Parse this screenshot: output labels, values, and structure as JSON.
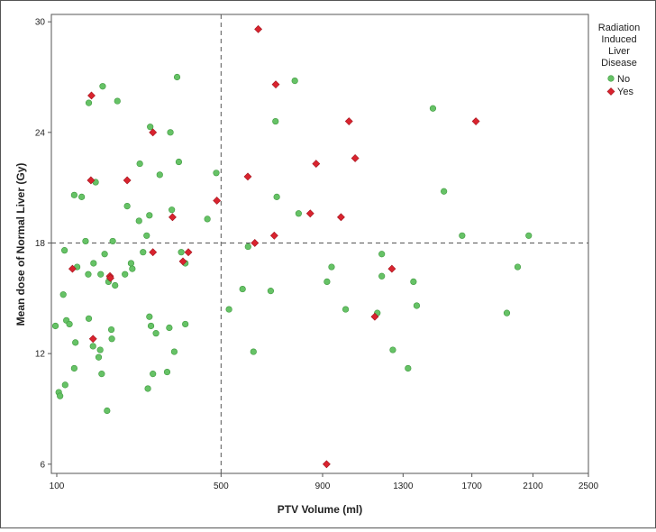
{
  "chart_data": {
    "type": "scatter",
    "title": "",
    "xlabel": "PTV Volume (ml)",
    "ylabel": "Mean dose of Normal Liver (Gy)",
    "x_scale": "sqrt",
    "xlim": [
      100,
      2500
    ],
    "ylim": [
      5.5,
      30.4
    ],
    "xticks": [
      100,
      500,
      900,
      1300,
      1700,
      2100,
      2500
    ],
    "yticks": [
      6,
      12,
      18,
      24,
      30
    ],
    "reference_lines": {
      "x": 500,
      "y": 18,
      "style": "dashed"
    },
    "grid": false,
    "legend": {
      "title": "Radiation Induced Liver Disease",
      "title_lines": [
        "Radiation",
        "Induced",
        "Liver",
        "Disease"
      ],
      "placement": "top-right"
    },
    "series": [
      {
        "name": "No",
        "color": "#66c266",
        "marker": "circle",
        "points": [
          [
            103,
            9.9
          ],
          [
            105,
            9.7
          ],
          [
            98,
            13.5
          ],
          [
            113,
            10.3
          ],
          [
            110,
            15.2
          ],
          [
            112,
            17.6
          ],
          [
            115,
            13.8
          ],
          [
            120,
            13.6
          ],
          [
            128,
            11.2
          ],
          [
            130,
            12.6
          ],
          [
            128,
            20.6
          ],
          [
            133,
            16.7
          ],
          [
            141,
            20.5
          ],
          [
            148,
            18.1
          ],
          [
            154,
            13.9
          ],
          [
            153,
            16.3
          ],
          [
            154,
            25.6
          ],
          [
            162,
            12.4
          ],
          [
            163,
            16.9
          ],
          [
            167,
            21.3
          ],
          [
            173,
            11.8
          ],
          [
            176,
            12.2
          ],
          [
            177,
            16.3
          ],
          [
            179,
            10.9
          ],
          [
            181,
            26.5
          ],
          [
            185,
            17.4
          ],
          [
            190,
            8.9
          ],
          [
            193,
            15.9
          ],
          [
            196,
            16.1
          ],
          [
            199,
            13.3
          ],
          [
            200,
            12.8
          ],
          [
            202,
            18.1
          ],
          [
            207,
            15.7
          ],
          [
            212,
            25.7
          ],
          [
            229,
            16.3
          ],
          [
            234,
            20.0
          ],
          [
            243,
            16.9
          ],
          [
            246,
            16.6
          ],
          [
            262,
            19.2
          ],
          [
            264,
            22.3
          ],
          [
            272,
            17.5
          ],
          [
            281,
            18.4
          ],
          [
            284,
            10.1
          ],
          [
            288,
            19.5
          ],
          [
            288,
            14.0
          ],
          [
            290,
            24.3
          ],
          [
            292,
            13.5
          ],
          [
            297,
            10.9
          ],
          [
            305,
            13.1
          ],
          [
            315,
            21.7
          ],
          [
            335,
            11.0
          ],
          [
            341,
            13.4
          ],
          [
            344,
            24.0
          ],
          [
            348,
            19.8
          ],
          [
            355,
            12.1
          ],
          [
            363,
            27.0
          ],
          [
            368,
            22.4
          ],
          [
            375,
            17.5
          ],
          [
            387,
            16.9
          ],
          [
            387,
            13.6
          ],
          [
            455,
            19.3
          ],
          [
            484,
            21.8
          ],
          [
            527,
            14.4
          ],
          [
            575,
            15.5
          ],
          [
            595,
            17.8
          ],
          [
            615,
            12.1
          ],
          [
            681,
            15.4
          ],
          [
            700,
            24.6
          ],
          [
            705,
            20.5
          ],
          [
            779,
            26.8
          ],
          [
            795,
            19.6
          ],
          [
            920,
            15.9
          ],
          [
            941,
            16.7
          ],
          [
            1007,
            14.4
          ],
          [
            1164,
            14.2
          ],
          [
            1187,
            16.2
          ],
          [
            1187,
            17.4
          ],
          [
            1245,
            12.2
          ],
          [
            1327,
            11.2
          ],
          [
            1357,
            15.9
          ],
          [
            1375,
            14.6
          ],
          [
            1467,
            25.3
          ],
          [
            1531,
            20.8
          ],
          [
            1640,
            18.4
          ],
          [
            1924,
            14.2
          ],
          [
            1996,
            16.7
          ],
          [
            2071,
            18.4
          ]
        ]
      },
      {
        "name": "Yes",
        "color": "#d9232e",
        "marker": "diamond",
        "points": [
          [
            125,
            16.6
          ],
          [
            159,
            26.0
          ],
          [
            158,
            21.4
          ],
          [
            162,
            12.8
          ],
          [
            196,
            16.2
          ],
          [
            197,
            16.1
          ],
          [
            234,
            21.4
          ],
          [
            297,
            24.0
          ],
          [
            297,
            17.5
          ],
          [
            350,
            19.4
          ],
          [
            380,
            17.0
          ],
          [
            396,
            17.5
          ],
          [
            486,
            20.3
          ],
          [
            594,
            21.6
          ],
          [
            620,
            18.0
          ],
          [
            633,
            29.6
          ],
          [
            695,
            18.4
          ],
          [
            701,
            26.6
          ],
          [
            845,
            19.6
          ],
          [
            871,
            22.3
          ],
          [
            985,
            19.4
          ],
          [
            1023,
            24.6
          ],
          [
            1053,
            22.6
          ],
          [
            1151,
            14.0
          ],
          [
            1240,
            16.6
          ],
          [
            1725,
            24.6
          ],
          [
            918,
            6.0
          ]
        ]
      }
    ]
  }
}
